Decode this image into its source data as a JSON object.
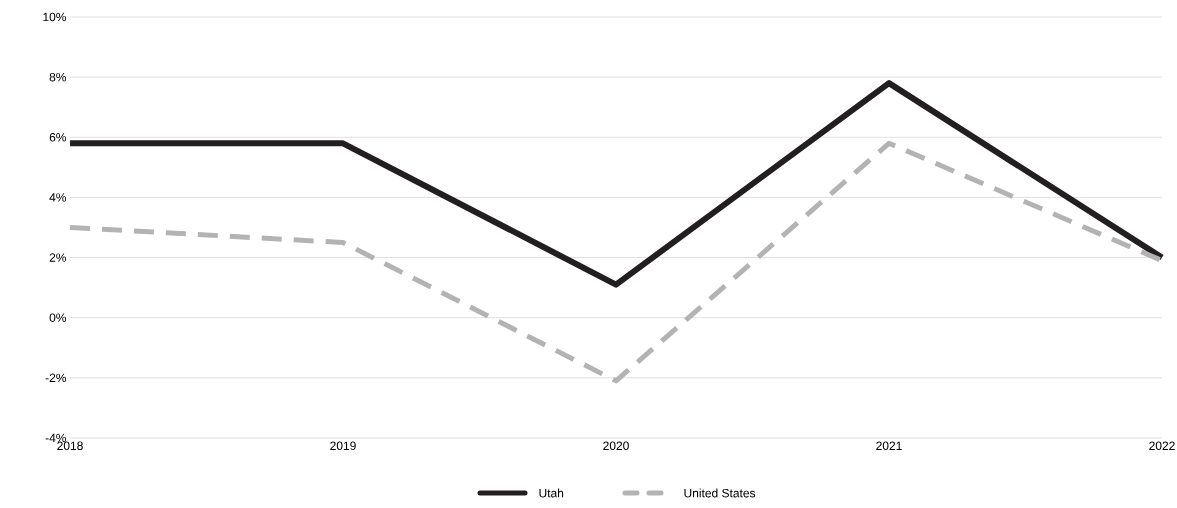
{
  "chart_data": {
    "type": "line",
    "categories": [
      "2018",
      "2019",
      "2020",
      "2021",
      "2022"
    ],
    "series": [
      {
        "name": "Utah",
        "color": "#231f20",
        "values": [
          5.8,
          5.8,
          1.1,
          7.8,
          2.0
        ],
        "line_style": "solid"
      },
      {
        "name": "United States",
        "color": "#b3b3b5",
        "values": [
          3.0,
          2.5,
          -2.1,
          5.8,
          1.9
        ],
        "line_style": "dashed"
      }
    ],
    "ylim": [
      -4,
      10
    ],
    "yticks": [
      {
        "value": -4,
        "label": "-4%"
      },
      {
        "value": -2,
        "label": "-2%"
      },
      {
        "value": 0,
        "label": "0%"
      },
      {
        "value": 2,
        "label": "2%"
      },
      {
        "value": 4,
        "label": "4%"
      },
      {
        "value": 6,
        "label": "6%"
      },
      {
        "value": 8,
        "label": "8%"
      },
      {
        "value": 10,
        "label": "10%"
      }
    ],
    "grid": "y",
    "legend": "bottom",
    "marker": "none"
  }
}
